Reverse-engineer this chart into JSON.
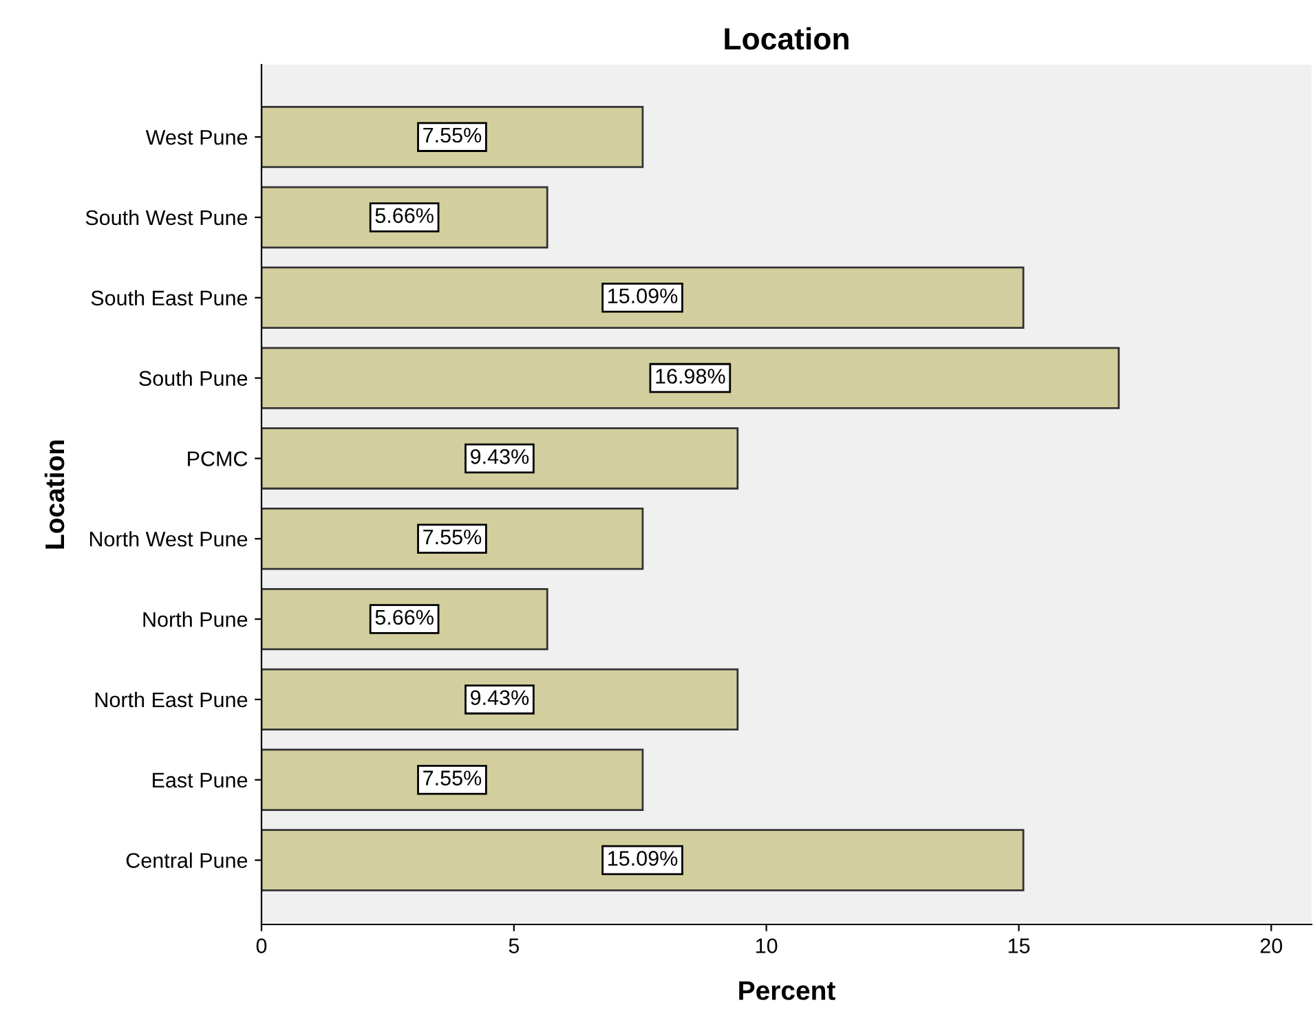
{
  "chart_data": {
    "type": "bar",
    "orientation": "horizontal",
    "title": "Location",
    "xlabel": "Percent",
    "ylabel": "Location",
    "categories": [
      "West Pune",
      "South West Pune",
      "South East Pune",
      "South Pune",
      "PCMC",
      "North West Pune",
      "North Pune",
      "North East Pune",
      "East Pune",
      "Central Pune"
    ],
    "values": [
      7.55,
      5.66,
      15.09,
      16.98,
      9.43,
      7.55,
      5.66,
      9.43,
      7.55,
      15.09
    ],
    "value_labels": [
      "7.55%",
      "5.66%",
      "15.09%",
      "16.98%",
      "9.43%",
      "7.55%",
      "5.66%",
      "9.43%",
      "7.55%",
      "15.09%"
    ],
    "color": "#d3ce9e",
    "xlim": [
      0,
      20.8
    ],
    "xticks": [
      0,
      5,
      10,
      15,
      20
    ],
    "grid": false,
    "legend": false
  }
}
